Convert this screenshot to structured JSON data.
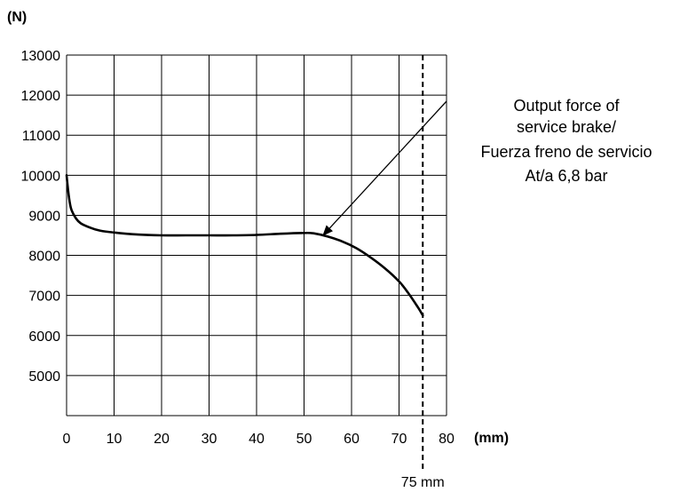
{
  "chart_data": {
    "type": "line",
    "y_unit": "(N)",
    "x_unit": "(mm)",
    "xlim": [
      0,
      80
    ],
    "ylim": [
      4000,
      13000
    ],
    "grid": true,
    "x_ticks": [
      "0",
      "10",
      "20",
      "30",
      "40",
      "50",
      "60",
      "70",
      "80"
    ],
    "y_ticks": [
      "5000",
      "6000",
      "7000",
      "8000",
      "9000",
      "10000",
      "11000",
      "12000",
      "13000"
    ],
    "series": [
      {
        "x": [
          0,
          0.5,
          1,
          2,
          3,
          5,
          7,
          10,
          15,
          20,
          25,
          30,
          35,
          40,
          45,
          50,
          52,
          55,
          58,
          61,
          64,
          67,
          70,
          72,
          74,
          75
        ],
        "y": [
          10000,
          9450,
          9150,
          8920,
          8800,
          8690,
          8620,
          8570,
          8520,
          8500,
          8500,
          8500,
          8500,
          8510,
          8540,
          8560,
          8550,
          8470,
          8350,
          8180,
          7950,
          7680,
          7350,
          7050,
          6700,
          6500
        ]
      }
    ],
    "marker_line": {
      "x": 75,
      "label": "75 mm"
    },
    "annotation": {
      "lines": [
        "Output force of",
        "service brake/",
        "Fuerza freno de servicio",
        "At/a 6,8 bar"
      ],
      "arrow_to": {
        "x": 54,
        "y": 8500
      }
    }
  }
}
